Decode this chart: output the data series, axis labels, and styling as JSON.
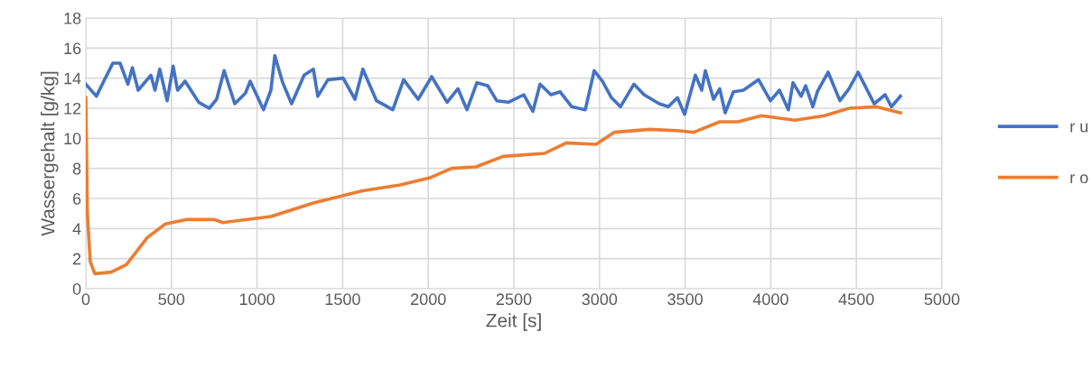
{
  "chart_data": {
    "type": "line",
    "xlabel": "Zeit [s]",
    "ylabel": "Wassergehalt [g/kg]",
    "xlim": [
      0,
      5000
    ],
    "ylim": [
      0,
      18
    ],
    "xticks": [
      0,
      500,
      1000,
      1500,
      2000,
      2500,
      3000,
      3500,
      4000,
      4500,
      5000
    ],
    "yticks": [
      0,
      2,
      4,
      6,
      8,
      10,
      12,
      14,
      16,
      18
    ],
    "grid": true,
    "legend": "right",
    "marker": "none",
    "line_style": "solid",
    "series": [
      {
        "name": "r u",
        "color": "#4472c4",
        "x": [
          0,
          62,
          105,
          158,
          200,
          246,
          272,
          306,
          380,
          404,
          432,
          475,
          510,
          536,
          580,
          659,
          721,
          764,
          808,
          870,
          932,
          960,
          1038,
          1081,
          1104,
          1150,
          1202,
          1275,
          1329,
          1355,
          1414,
          1503,
          1572,
          1618,
          1698,
          1793,
          1856,
          1941,
          2020,
          2110,
          2173,
          2226,
          2284,
          2347,
          2400,
          2468,
          2558,
          2611,
          2653,
          2716,
          2769,
          2838,
          2917,
          2969,
          3017,
          3070,
          3122,
          3201,
          3260,
          3349,
          3402,
          3455,
          3497,
          3560,
          3597,
          3618,
          3666,
          3702,
          3734,
          3782,
          3840,
          3929,
          3998,
          4051,
          4103,
          4130,
          4177,
          4204,
          4246,
          4272,
          4335,
          4404,
          4457,
          4510,
          4546,
          4604,
          4668,
          4705,
          4757
        ],
        "values": [
          13.6,
          12.8,
          13.8,
          15.0,
          15.0,
          13.6,
          14.7,
          13.2,
          14.2,
          13.2,
          14.6,
          12.5,
          14.8,
          13.2,
          13.8,
          12.4,
          12.0,
          12.6,
          14.5,
          12.3,
          13.0,
          13.8,
          11.9,
          13.2,
          15.5,
          13.7,
          12.3,
          14.2,
          14.6,
          12.8,
          13.9,
          14.0,
          12.6,
          14.6,
          12.5,
          11.9,
          13.9,
          12.6,
          14.1,
          12.4,
          13.3,
          11.9,
          13.7,
          13.5,
          12.5,
          12.4,
          12.9,
          11.8,
          13.6,
          12.9,
          13.1,
          12.1,
          11.9,
          14.5,
          13.8,
          12.7,
          12.1,
          13.6,
          12.9,
          12.3,
          12.1,
          12.7,
          11.6,
          14.2,
          13.2,
          14.5,
          12.6,
          13.3,
          11.7,
          13.1,
          13.2,
          13.9,
          12.5,
          13.2,
          11.9,
          13.7,
          12.8,
          13.5,
          12.1,
          13.1,
          14.4,
          12.5,
          13.3,
          14.4,
          13.6,
          12.3,
          12.9,
          12.1,
          12.8
        ]
      },
      {
        "name": "r o",
        "color": "#ed7d31",
        "x": [
          0,
          9,
          26,
          53,
          148,
          237,
          359,
          464,
          590,
          749,
          802,
          1081,
          1329,
          1503,
          1609,
          1835,
          2015,
          2136,
          2278,
          2437,
          2679,
          2806,
          2980,
          3085,
          3296,
          3470,
          3550,
          3702,
          3808,
          3945,
          4140,
          4314,
          4457,
          4615,
          4757
        ],
        "values": [
          12.7,
          5.0,
          1.8,
          1.0,
          1.1,
          1.6,
          3.4,
          4.3,
          4.6,
          4.6,
          4.4,
          4.8,
          5.7,
          6.2,
          6.5,
          6.9,
          7.4,
          8.0,
          8.1,
          8.8,
          9.0,
          9.7,
          9.6,
          10.4,
          10.6,
          10.5,
          10.4,
          11.1,
          11.1,
          11.5,
          11.2,
          11.5,
          12.0,
          12.1,
          11.7
        ]
      }
    ]
  }
}
